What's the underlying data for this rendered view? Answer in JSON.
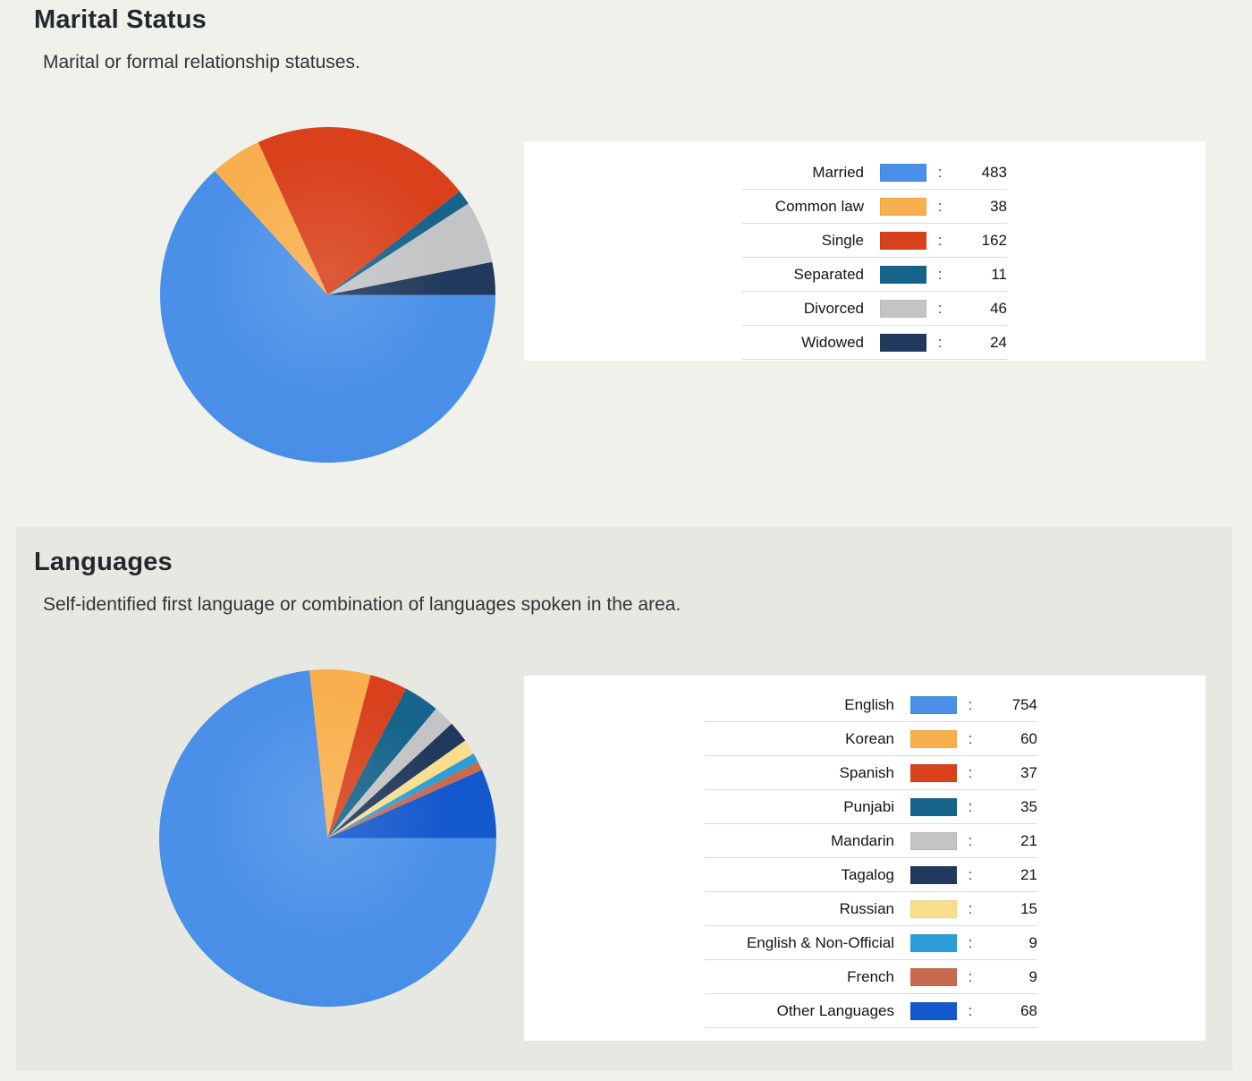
{
  "page": {
    "background": "#f0f1eb",
    "panel_background": "#e7e8e1",
    "card_background": "#ffffff"
  },
  "sections": [
    {
      "title": "Marital Status",
      "subtitle": "Marital or formal relationship statuses.",
      "chart_data": {
        "type": "pie",
        "title": "Marital Status",
        "categories": [
          "Married",
          "Common law",
          "Single",
          "Separated",
          "Divorced",
          "Widowed"
        ],
        "values": [
          483,
          38,
          162,
          11,
          46,
          24
        ],
        "colors": [
          "#4a90e8",
          "#f8b04e",
          "#d9411c",
          "#16648b",
          "#c3c4c5",
          "#21395c"
        ],
        "legend_position": "right",
        "legend_separator": ":",
        "start_angle": "3-oclock",
        "direction": "clockwise"
      }
    },
    {
      "title": "Languages",
      "subtitle": "Self-identified first language or combination of languages spoken in the area.",
      "chart_data": {
        "type": "pie",
        "title": "Languages",
        "categories": [
          "English",
          "Korean",
          "Spanish",
          "Punjabi",
          "Mandarin",
          "Tagalog",
          "Russian",
          "English & Non-Official",
          "French",
          "Other Languages"
        ],
        "values": [
          754,
          60,
          37,
          35,
          21,
          21,
          15,
          9,
          9,
          68
        ],
        "colors": [
          "#4a90e8",
          "#f8b04e",
          "#d9411c",
          "#16648b",
          "#c3c4c5",
          "#21395c",
          "#f9df8d",
          "#2d9fd8",
          "#c76b4f",
          "#1458ce"
        ],
        "legend_position": "right",
        "legend_separator": ":",
        "start_angle": "3-oclock",
        "direction": "clockwise"
      }
    }
  ]
}
